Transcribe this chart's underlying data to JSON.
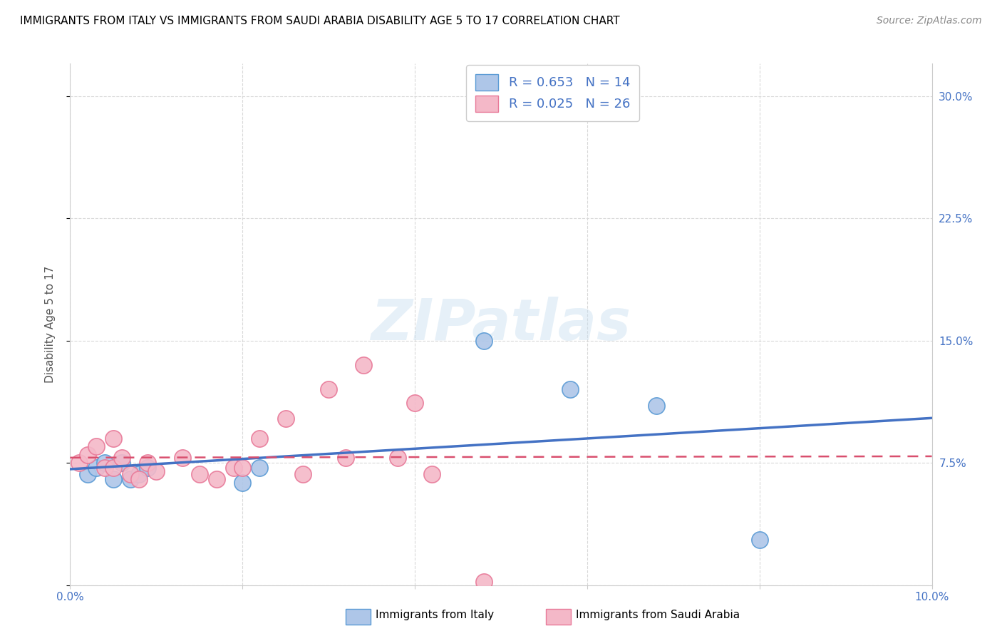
{
  "title": "IMMIGRANTS FROM ITALY VS IMMIGRANTS FROM SAUDI ARABIA DISABILITY AGE 5 TO 17 CORRELATION CHART",
  "source": "Source: ZipAtlas.com",
  "ylabel": "Disability Age 5 to 17",
  "xlim": [
    0.0,
    0.1
  ],
  "ylim": [
    0.0,
    0.32
  ],
  "xticks": [
    0.0,
    0.02,
    0.04,
    0.06,
    0.08,
    0.1
  ],
  "yticks": [
    0.0,
    0.075,
    0.15,
    0.225,
    0.3
  ],
  "xtick_labels": [
    "0.0%",
    "",
    "",
    "",
    "",
    "10.0%"
  ],
  "ytick_labels": [
    "",
    "7.5%",
    "15.0%",
    "22.5%",
    "30.0%"
  ],
  "italy_color": "#aec6e8",
  "italy_edge": "#5b9bd5",
  "saudi_color": "#f4b8c8",
  "saudi_edge": "#e87a99",
  "italy_line_color": "#4472c4",
  "saudi_line_color": "#d94f6e",
  "watermark": "ZIPatlas",
  "italy_scatter_x": [
    0.002,
    0.003,
    0.004,
    0.005,
    0.006,
    0.007,
    0.008,
    0.009,
    0.02,
    0.022,
    0.048,
    0.058,
    0.068,
    0.08
  ],
  "italy_scatter_y": [
    0.068,
    0.072,
    0.075,
    0.065,
    0.075,
    0.065,
    0.068,
    0.072,
    0.063,
    0.072,
    0.15,
    0.12,
    0.11,
    0.028
  ],
  "saudi_scatter_x": [
    0.001,
    0.002,
    0.003,
    0.004,
    0.005,
    0.005,
    0.006,
    0.007,
    0.008,
    0.009,
    0.01,
    0.013,
    0.015,
    0.017,
    0.019,
    0.02,
    0.022,
    0.025,
    0.027,
    0.03,
    0.032,
    0.034,
    0.038,
    0.04,
    0.042,
    0.048
  ],
  "saudi_scatter_y": [
    0.075,
    0.08,
    0.085,
    0.072,
    0.09,
    0.072,
    0.078,
    0.068,
    0.065,
    0.075,
    0.07,
    0.078,
    0.068,
    0.065,
    0.072,
    0.072,
    0.09,
    0.102,
    0.068,
    0.12,
    0.078,
    0.135,
    0.078,
    0.112,
    0.068,
    0.002
  ],
  "background_color": "#ffffff",
  "grid_color": "#d9d9d9",
  "title_fontsize": 11,
  "axis_label_fontsize": 11,
  "tick_fontsize": 11,
  "legend_fontsize": 13,
  "source_fontsize": 10,
  "italy_R": "0.653",
  "italy_N": "14",
  "saudi_R": "0.025",
  "saudi_N": "26"
}
